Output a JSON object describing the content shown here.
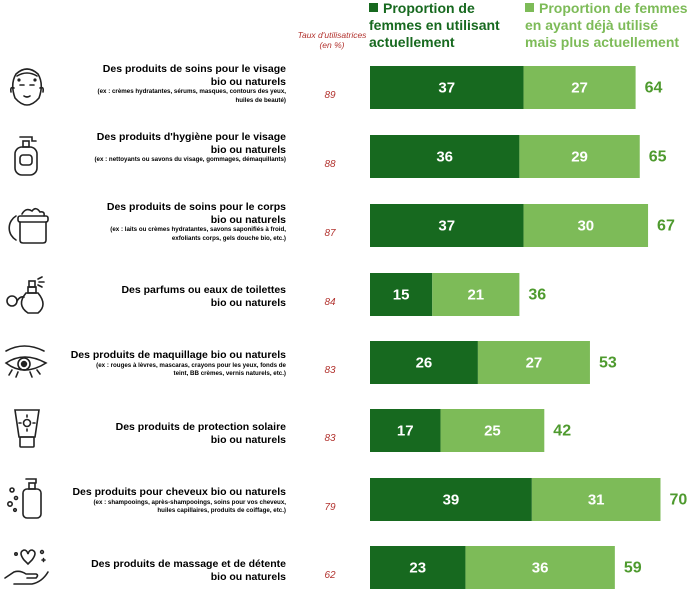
{
  "legend": {
    "current": "Proportion de femmes en utilisant actuellement",
    "past": "Proportion de femmes en ayant déjà utilisé mais plus actuellement"
  },
  "rate_title": "Taux d'utilisatrices (en %)",
  "colors": {
    "current": "#17691f",
    "past": "#7dbb58",
    "total_text": "#4e9a2e",
    "rate_text": "#b2322e"
  },
  "rows": [
    {
      "icon": "face-mask-icon",
      "label_lines": [
        "Des produits de soins pour le visage",
        "bio ou naturels"
      ],
      "example_lines": [
        "(ex : crèmes hydratantes, sérums, masques,  contours des yeux,",
        "huiles de beauté)"
      ],
      "rate": "89"
    },
    {
      "icon": "pump-bottle-icon",
      "label_lines": [
        "Des produits d'hygiène pour le visage",
        "bio ou naturels"
      ],
      "example_lines": [
        "(ex : nettoyants ou savons du visage, gommages, démaquillants)"
      ],
      "rate": "88"
    },
    {
      "icon": "cream-jar-icon",
      "label_lines": [
        "Des produits de soins pour le corps",
        "bio ou naturels"
      ],
      "example_lines": [
        "(ex : laits ou crèmes hydratantes, savons saponifiés à froid,",
        "exfoliants corps, gels douche bio, etc.)"
      ],
      "rate": "87"
    },
    {
      "icon": "perfume-bottle-icon",
      "label_lines": [
        "Des parfums ou eaux de toilettes",
        "bio ou naturels"
      ],
      "example_lines": [],
      "rate": "84"
    },
    {
      "icon": "eye-makeup-icon",
      "label_lines": [
        "Des produits de maquillage bio ou naturels"
      ],
      "example_lines": [
        "(ex : rouges à lèvres, mascaras, crayons pour les yeux, fonds de",
        "teint, BB crèmes, vernis naturels, etc.)"
      ],
      "rate": "83"
    },
    {
      "icon": "sunscreen-tube-icon",
      "label_lines": [
        "Des produits de protection solaire",
        "bio ou naturels"
      ],
      "example_lines": [],
      "rate": "83"
    },
    {
      "icon": "shampoo-bottle-icon",
      "label_lines": [
        "Des produits pour cheveux bio ou naturels"
      ],
      "example_lines": [
        "(ex : shampooings, après-shampooings, soins pour vos cheveux,",
        "huiles capillaires, produits de coiffage, etc.)"
      ],
      "rate": "79"
    },
    {
      "icon": "massage-hand-icon",
      "label_lines": [
        "Des produits de massage et de détente",
        "bio ou naturels"
      ],
      "example_lines": [],
      "rate": "62"
    }
  ],
  "chart_data": {
    "type": "bar",
    "orientation": "horizontal",
    "stacked": true,
    "categories": [
      "Des produits de soins pour le visage bio ou naturels",
      "Des produits d'hygiène pour le visage bio ou naturels",
      "Des produits de soins pour le corps bio ou naturels",
      "Des parfums ou eaux de toilettes bio ou naturels",
      "Des produits de maquillage bio ou naturels",
      "Des produits de protection solaire bio ou naturels",
      "Des produits pour cheveux bio ou naturels",
      "Des produits de massage et de détente bio ou naturels"
    ],
    "series": [
      {
        "name": "Proportion de femmes en utilisant actuellement",
        "values": [
          37,
          36,
          37,
          15,
          26,
          17,
          39,
          23
        ]
      },
      {
        "name": "Proportion de femmes en ayant déjà utilisé mais plus actuellement",
        "values": [
          27,
          29,
          30,
          21,
          27,
          25,
          31,
          36
        ]
      }
    ],
    "totals": [
      64,
      65,
      67,
      36,
      53,
      42,
      70,
      59
    ],
    "xlim": [
      0,
      70
    ],
    "grid": false,
    "legend_position": "top"
  }
}
